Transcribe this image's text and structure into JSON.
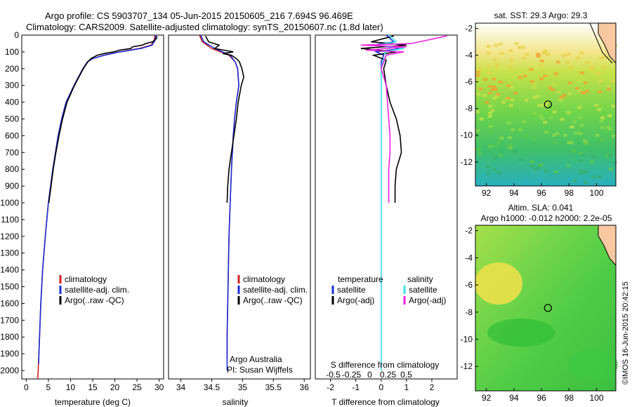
{
  "figure": {
    "title_line1": "Argo profile: CS 5903707_134 05-Jun-2015 20150605_216 7.694S 96.469E",
    "title_line2": "Climatology: CARS2009. Satellite-adjusted climatology: synTS_20150607.nc (1.8d later)",
    "credit": "Argo Australia",
    "pi": "PI: Susan Wijffels",
    "watermark": "©IMOS 16-Jun-2015 20:42:15"
  },
  "colors": {
    "climatology": "#d02020",
    "satellite": "#1a2fd8",
    "argo": "#000000",
    "sal_satellite": "#40e0e8",
    "sal_argo": "#f020e0"
  },
  "chart_data": [
    {
      "type": "line",
      "id": "temperature",
      "xlabel": "temperature (deg C)",
      "xlim": [
        -1,
        31
      ],
      "xticks": [
        0,
        5,
        10,
        15,
        20,
        25,
        30
      ],
      "ylim": [
        0,
        2050
      ],
      "yticks": [
        0,
        100,
        200,
        300,
        400,
        500,
        600,
        700,
        800,
        900,
        1000,
        1100,
        1200,
        1300,
        1400,
        1500,
        1600,
        1700,
        1800,
        1900,
        2000
      ],
      "legend": [
        "climatology",
        "satellite-adj. clim.",
        "Argo(..raw -QC)"
      ],
      "series": [
        {
          "name": "climatology",
          "color_key": "climatology",
          "depth": [
            0,
            30,
            60,
            80,
            100,
            120,
            140,
            160,
            200,
            250,
            300,
            400,
            500,
            600,
            800,
            1000,
            1200,
            1400,
            1600,
            1800,
            2000,
            2050
          ],
          "values": [
            29.0,
            28.9,
            28.2,
            25.5,
            21.0,
            17.5,
            15.0,
            13.8,
            12.8,
            11.8,
            10.8,
            9.0,
            8.0,
            7.2,
            6.0,
            5.0,
            4.3,
            3.7,
            3.3,
            3.0,
            2.7,
            2.6
          ]
        },
        {
          "name": "satellite-adj. clim.",
          "color_key": "satellite",
          "depth": [
            0,
            30,
            60,
            80,
            100,
            120,
            140,
            160,
            200,
            250,
            300,
            400,
            500,
            600,
            800,
            1000,
            1200,
            1400,
            1600,
            1800,
            1960
          ],
          "values": [
            29.2,
            29.1,
            28.4,
            25.9,
            21.2,
            17.6,
            15.0,
            13.8,
            12.8,
            11.8,
            10.8,
            9.0,
            8.0,
            7.2,
            6.0,
            5.0,
            4.3,
            3.7,
            3.3,
            3.0,
            2.8
          ]
        },
        {
          "name": "Argo(..raw -QC)",
          "color_key": "argo",
          "depth": [
            5,
            20,
            40,
            50,
            60,
            70,
            80,
            90,
            100,
            110,
            120,
            140,
            160,
            200,
            250,
            300,
            400,
            500,
            600,
            700,
            800,
            900,
            1000
          ],
          "values": [
            29.5,
            29.4,
            28.5,
            27.0,
            26.2,
            24.0,
            23.6,
            21.0,
            19.8,
            17.5,
            16.0,
            14.6,
            13.9,
            12.9,
            11.9,
            10.9,
            9.2,
            8.2,
            7.4,
            6.7,
            6.1,
            5.6,
            5.1
          ]
        }
      ]
    },
    {
      "type": "line",
      "id": "salinity",
      "xlabel": "salinity",
      "xlim": [
        33.8,
        36.1
      ],
      "xticks": [
        34,
        34.5,
        35,
        35.5,
        36
      ],
      "xtick_labels": [
        "34",
        "34.5",
        "35",
        "35.5",
        "36"
      ],
      "ylim": [
        0,
        2050
      ],
      "legend": [
        "climatology",
        "satellite-adj. clim.",
        "Argo(..raw -QC)"
      ],
      "series": [
        {
          "name": "climatology",
          "color_key": "climatology",
          "depth": [
            0,
            40,
            80,
            120,
            160,
            200,
            300,
            400,
            500,
            600,
            800,
            1000,
            1200,
            1400,
            1600,
            1800,
            1930
          ],
          "values": [
            34.3,
            34.35,
            34.5,
            34.78,
            34.88,
            34.92,
            34.94,
            34.9,
            34.87,
            34.85,
            34.82,
            34.8,
            34.78,
            34.77,
            34.76,
            34.75,
            34.75
          ]
        },
        {
          "name": "satellite-adj. clim.",
          "color_key": "satellite",
          "depth": [
            0,
            40,
            80,
            120,
            160,
            200,
            300,
            400,
            500,
            600,
            800,
            1000,
            1200,
            1400,
            1600,
            1800,
            2000
          ],
          "values": [
            34.32,
            34.37,
            34.55,
            34.8,
            34.88,
            34.92,
            34.94,
            34.9,
            34.87,
            34.85,
            34.82,
            34.8,
            34.78,
            34.77,
            34.76,
            34.75,
            34.75
          ]
        },
        {
          "name": "Argo(..raw -QC)",
          "color_key": "argo",
          "depth": [
            5,
            40,
            60,
            80,
            100,
            110,
            120,
            140,
            160,
            200,
            250,
            300,
            400,
            500,
            600,
            700,
            800,
            900,
            1000
          ],
          "values": [
            34.4,
            34.45,
            34.62,
            34.55,
            34.85,
            34.68,
            34.82,
            34.9,
            34.95,
            34.99,
            35.02,
            34.98,
            34.93,
            34.9,
            34.86,
            34.82,
            34.78,
            34.76,
            34.75
          ]
        }
      ]
    },
    {
      "type": "line",
      "id": "difference",
      "xlabel": "T difference from climatology",
      "xlabel_top": "S difference from climatology",
      "xlim": [
        -2.6,
        3.0
      ],
      "xticks": [
        -2,
        -1,
        0,
        1,
        2
      ],
      "sticks": [
        -0.5,
        -0.25,
        0,
        0.25,
        0.5
      ],
      "legend_temperature": [
        "temperature",
        "satellite",
        "Argo(-adj)"
      ],
      "legend_salinity": [
        "salinity",
        "satellite",
        "Argo(-adj)"
      ],
      "series": [
        {
          "name": "satellite",
          "color_key": "satellite",
          "depth": [
            0,
            40,
            60,
            80,
            100,
            120,
            160,
            200,
            300,
            400,
            600,
            800,
            1000,
            1200,
            1500,
            1800,
            2000
          ],
          "values": [
            0.2,
            0.5,
            -0.3,
            0.8,
            -0.2,
            0.1,
            0.0,
            0.0,
            0.0,
            0.0,
            0.0,
            0.0,
            0.0,
            0.0,
            0.0,
            0.0,
            0.0
          ]
        },
        {
          "name": "Argo(-adj)",
          "color_key": "argo",
          "depth": [
            5,
            40,
            60,
            80,
            100,
            120,
            150,
            200,
            300,
            400,
            500,
            600,
            700,
            800,
            900,
            1000
          ],
          "values": [
            0.5,
            -0.4,
            1.0,
            -0.8,
            0.6,
            -0.3,
            0.2,
            0.1,
            0.2,
            0.35,
            0.6,
            0.75,
            0.8,
            0.6,
            0.55,
            0.55
          ]
        },
        {
          "name": "salinity satellite",
          "color_key": "sal_satellite",
          "depth": [
            0,
            40,
            60,
            80,
            100,
            120,
            160,
            200,
            300,
            400,
            600,
            800,
            1000,
            1200,
            1500,
            1800,
            2000
          ],
          "values": [
            0.3,
            0.6,
            -0.2,
            0.9,
            0.1,
            0.2,
            0.05,
            0.0,
            0.0,
            0.0,
            0.0,
            0.0,
            0.0,
            0.0,
            0.0,
            0.0,
            0.0
          ]
        },
        {
          "name": "salinity Argo(-adj)",
          "color_key": "sal_argo",
          "depth": [
            5,
            50,
            60,
            70,
            90,
            100,
            120,
            160,
            200,
            300,
            400,
            500,
            600,
            700,
            800,
            900,
            1000
          ],
          "values": [
            2.6,
            1.2,
            -0.8,
            1.0,
            -0.6,
            0.9,
            0.2,
            0.1,
            0.0,
            0.2,
            0.25,
            0.3,
            0.35,
            0.35,
            0.3,
            0.3,
            0.3
          ]
        }
      ]
    },
    {
      "type": "heatmap",
      "id": "sst_map",
      "title": "sat. SST: 29.3 Argo: 29.3",
      "xticks": [
        92,
        94,
        96,
        98,
        100
      ],
      "yticks": [
        -2,
        -4,
        -6,
        -8,
        -10,
        -12
      ],
      "xlim": [
        91.2,
        101.4
      ],
      "ylim": [
        -13.8,
        -1.6
      ],
      "marker": {
        "lon": 96.47,
        "lat": -7.69
      }
    },
    {
      "type": "heatmap",
      "id": "sla_map",
      "title": "Altim. SLA: 0.041",
      "subtitle": "Argo h1000: -0.012 h2000: 2.2e-05",
      "xticks": [
        92,
        94,
        96,
        98,
        100
      ],
      "yticks": [
        -2,
        -4,
        -6,
        -8,
        -10,
        -12
      ],
      "xlim": [
        91.2,
        101.4
      ],
      "ylim": [
        -13.8,
        -1.6
      ],
      "marker": {
        "lon": 96.47,
        "lat": -7.69
      }
    }
  ]
}
